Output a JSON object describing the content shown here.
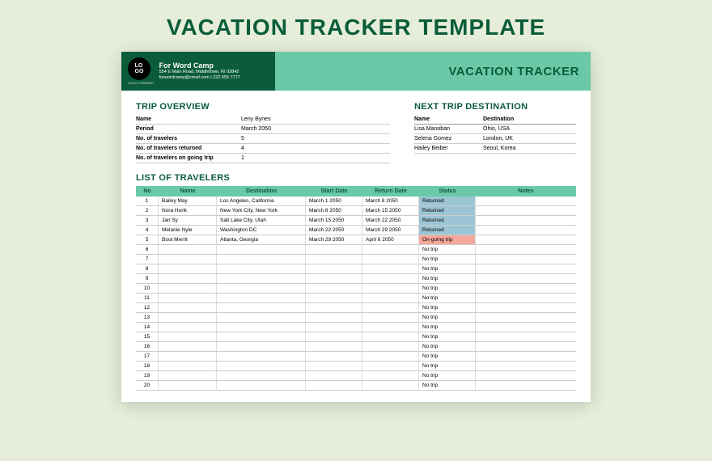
{
  "page_title": "VACATION TRACKER TEMPLATE",
  "header": {
    "logo_text": "LO\nGO",
    "logo_sub": "LOGO COMPANY",
    "company_name": "For Word Camp",
    "company_addr": "554 E Main Road, Middletown, RI 02842",
    "company_contact": "forwordcamp@zmail.com | 222 555 7777",
    "right_title": "VACATION TRACKER"
  },
  "overview": {
    "title": "TRIP OVERVIEW",
    "rows": [
      {
        "label": "Name",
        "value": "Leny Bynes"
      },
      {
        "label": "Period",
        "value": "March 2050"
      },
      {
        "label": "No. of travelers",
        "value": "5"
      },
      {
        "label": "No. of travelers returned",
        "value": "4"
      },
      {
        "label": "No. of travelers on going trip",
        "value": "1"
      }
    ]
  },
  "next_trip": {
    "title": "NEXT TRIP DESTINATION",
    "header": {
      "name": "Name",
      "dest": "Destination"
    },
    "rows": [
      {
        "name": "Lisa Manoban",
        "dest": "Ohio, USA"
      },
      {
        "name": "Selena Gomez",
        "dest": "London, UK"
      },
      {
        "name": "Hailey Beiber",
        "dest": "Seoul, Korea"
      }
    ]
  },
  "list": {
    "title": "LIST OF TRAVELERS",
    "header": {
      "no": "No",
      "name": "Name",
      "dest": "Destination",
      "start": "Start Date",
      "return": "Return Date",
      "status": "Status",
      "notes": "Notes"
    },
    "rows": [
      {
        "no": "1",
        "name": "Bailey May",
        "dest": "Los Angeles, California",
        "start": "March 1 2050",
        "return": "March 8 2050",
        "status": "Returned",
        "status_class": "returned",
        "notes": ""
      },
      {
        "no": "2",
        "name": "Nora Horik",
        "dest": "New York City, New York",
        "start": "March 8 2050",
        "return": "March 15 2050",
        "status": "Returned",
        "status_class": "returned",
        "notes": ""
      },
      {
        "no": "3",
        "name": "Jan Sy",
        "dest": "Salt Lake City, Utah",
        "start": "March 15 2050",
        "return": "March 22 2050",
        "status": "Returned",
        "status_class": "returned",
        "notes": ""
      },
      {
        "no": "4",
        "name": "Melanie Nyle",
        "dest": "Washington DC",
        "start": "March 22 2050",
        "return": "March 29 2050",
        "status": "Returned",
        "status_class": "returned",
        "notes": ""
      },
      {
        "no": "5",
        "name": "Boot Merrit",
        "dest": "Atlanta, Georgia",
        "start": "March 29 2050",
        "return": "April 6 2050",
        "status": "On-going trip",
        "status_class": "ongoing",
        "notes": ""
      },
      {
        "no": "6",
        "name": "",
        "dest": "",
        "start": "",
        "return": "",
        "status": "No trip",
        "status_class": "notrip",
        "notes": ""
      },
      {
        "no": "7",
        "name": "",
        "dest": "",
        "start": "",
        "return": "",
        "status": "No trip",
        "status_class": "notrip",
        "notes": ""
      },
      {
        "no": "8",
        "name": "",
        "dest": "",
        "start": "",
        "return": "",
        "status": "No trip",
        "status_class": "notrip",
        "notes": ""
      },
      {
        "no": "9",
        "name": "",
        "dest": "",
        "start": "",
        "return": "",
        "status": "No trip",
        "status_class": "notrip",
        "notes": ""
      },
      {
        "no": "10",
        "name": "",
        "dest": "",
        "start": "",
        "return": "",
        "status": "No trip",
        "status_class": "notrip",
        "notes": ""
      },
      {
        "no": "11",
        "name": "",
        "dest": "",
        "start": "",
        "return": "",
        "status": "No trip",
        "status_class": "notrip",
        "notes": ""
      },
      {
        "no": "12",
        "name": "",
        "dest": "",
        "start": "",
        "return": "",
        "status": "No trip",
        "status_class": "notrip",
        "notes": ""
      },
      {
        "no": "13",
        "name": "",
        "dest": "",
        "start": "",
        "return": "",
        "status": "No trip",
        "status_class": "notrip",
        "notes": ""
      },
      {
        "no": "14",
        "name": "",
        "dest": "",
        "start": "",
        "return": "",
        "status": "No trip",
        "status_class": "notrip",
        "notes": ""
      },
      {
        "no": "15",
        "name": "",
        "dest": "",
        "start": "",
        "return": "",
        "status": "No trip",
        "status_class": "notrip",
        "notes": ""
      },
      {
        "no": "16",
        "name": "",
        "dest": "",
        "start": "",
        "return": "",
        "status": "No trip",
        "status_class": "notrip",
        "notes": ""
      },
      {
        "no": "17",
        "name": "",
        "dest": "",
        "start": "",
        "return": "",
        "status": "No trip",
        "status_class": "notrip",
        "notes": ""
      },
      {
        "no": "18",
        "name": "",
        "dest": "",
        "start": "",
        "return": "",
        "status": "No trip",
        "status_class": "notrip",
        "notes": ""
      },
      {
        "no": "19",
        "name": "",
        "dest": "",
        "start": "",
        "return": "",
        "status": "No trip",
        "status_class": "notrip",
        "notes": ""
      },
      {
        "no": "20",
        "name": "",
        "dest": "",
        "start": "",
        "return": "",
        "status": "No trip",
        "status_class": "notrip",
        "notes": ""
      }
    ]
  },
  "colors": {
    "background": "#e6eed9",
    "accent_dark": "#0a5c3a",
    "accent_light": "#6bc9a8",
    "status_returned": "#9bc5d4",
    "status_ongoing": "#f5a89b"
  }
}
